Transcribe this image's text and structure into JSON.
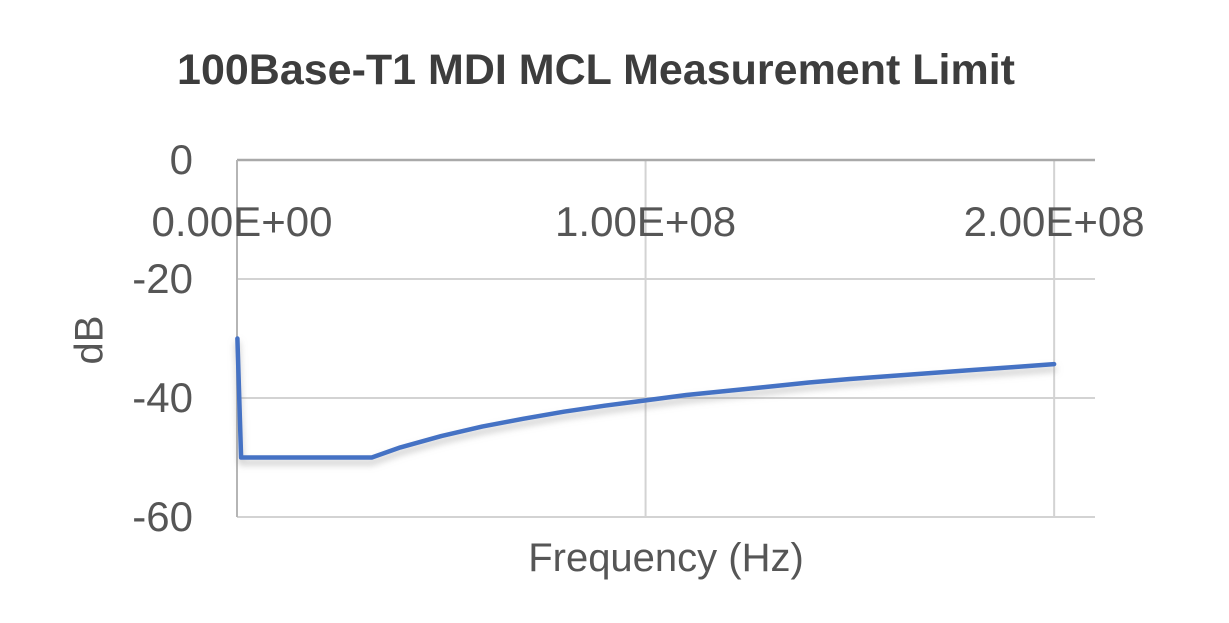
{
  "page": {
    "background": "#ffffff"
  },
  "chart_data": {
    "type": "line",
    "title": "100Base-T1 MDI MCL Measurement Limit",
    "xlabel": "Frequency (Hz)",
    "ylabel": "dB",
    "xlim": [
      0,
      210000000
    ],
    "ylim": [
      -60,
      0
    ],
    "grid": true,
    "legend": false,
    "x_ticks": [
      {
        "value": 0,
        "label": "0.00E+00"
      },
      {
        "value": 100000000,
        "label": "1.00E+08"
      },
      {
        "value": 200000000,
        "label": "2.00E+08"
      }
    ],
    "y_ticks": [
      {
        "value": 0,
        "label": "0"
      },
      {
        "value": -20,
        "label": "-20"
      },
      {
        "value": -40,
        "label": "-40"
      },
      {
        "value": -60,
        "label": "-60"
      }
    ],
    "colors": {
      "line": "#4472c4",
      "grid": "#d3d3d3",
      "axis": "#a9a9a9",
      "text": "#565656",
      "title": "#3d3d3d",
      "shadow": "#8a8a8a"
    },
    "series": [
      {
        "name": "MCL measurement limit",
        "color": "#4472c4",
        "points": [
          [
            100000,
            -30.0
          ],
          [
            1000000,
            -50.0
          ],
          [
            33000000,
            -50.0
          ],
          [
            40000000,
            -48.3
          ],
          [
            50000000,
            -46.4
          ],
          [
            60000000,
            -44.8
          ],
          [
            70000000,
            -43.5
          ],
          [
            80000000,
            -42.3
          ],
          [
            90000000,
            -41.3
          ],
          [
            100000000,
            -40.4
          ],
          [
            110000000,
            -39.5
          ],
          [
            120000000,
            -38.8
          ],
          [
            130000000,
            -38.1
          ],
          [
            140000000,
            -37.4
          ],
          [
            150000000,
            -36.8
          ],
          [
            160000000,
            -36.3
          ],
          [
            170000000,
            -35.8
          ],
          [
            180000000,
            -35.3
          ],
          [
            190000000,
            -34.8
          ],
          [
            200000000,
            -34.3
          ]
        ]
      }
    ]
  }
}
